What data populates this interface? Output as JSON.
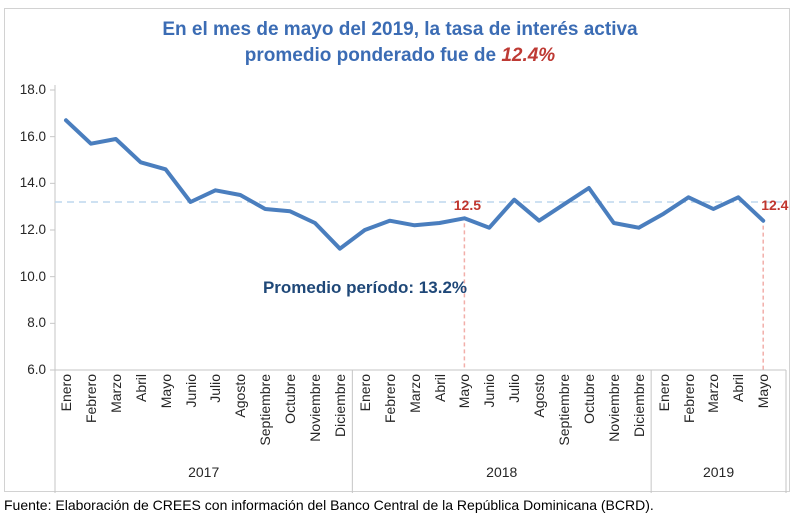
{
  "title": {
    "line1": "En el mes de mayo del 2019, la tasa de interés activa",
    "line2_prefix": "promedio ponderado fue de ",
    "line2_highlight": "12.4%"
  },
  "chart_data": {
    "type": "line",
    "series": [
      {
        "name": "Tasa de interés activa promedio ponderado (%)",
        "values": [
          16.7,
          15.7,
          15.9,
          14.9,
          14.6,
          13.2,
          13.7,
          13.5,
          12.9,
          12.8,
          12.3,
          11.2,
          12.0,
          12.4,
          12.2,
          12.3,
          12.5,
          12.1,
          13.3,
          12.4,
          13.1,
          13.8,
          12.3,
          12.1,
          12.7,
          13.4,
          12.9,
          13.4,
          12.4
        ]
      }
    ],
    "categories": [
      "Enero",
      "Febrero",
      "Marzo",
      "Abril",
      "Mayo",
      "Junio",
      "Julio",
      "Agosto",
      "Septiembre",
      "Octubre",
      "Noviembre",
      "Diciembre",
      "Enero",
      "Febrero",
      "Marzo",
      "Abril",
      "Mayo",
      "Junio",
      "Julio",
      "Agosto",
      "Septiembre",
      "Octubre",
      "Noviembre",
      "Diciembre",
      "Enero",
      "Febrero",
      "Marzo",
      "Abril",
      "Mayo"
    ],
    "category_groups": [
      {
        "label": "2017",
        "count": 12
      },
      {
        "label": "2018",
        "count": 12
      },
      {
        "label": "2019",
        "count": 5
      }
    ],
    "ylim": [
      6.0,
      18.0
    ],
    "yticks": [
      "18.0",
      "16.0",
      "14.0",
      "12.0",
      "10.0",
      "8.0",
      "6.0"
    ],
    "grid": "off",
    "legend": "none",
    "average_line": {
      "value": 13.2,
      "label": "Promedio período: 13.2%"
    },
    "annotations": [
      {
        "category_index": 16,
        "value": 12.5,
        "label": "12.5",
        "side": "left"
      },
      {
        "category_index": 28,
        "value": 12.4,
        "label": "12.4",
        "side": "right"
      }
    ]
  },
  "colors": {
    "title_blue": "#3b6cb4",
    "highlight_red": "#be3a34",
    "series_line_blue": "#4a7ebe",
    "average_dash_blue": "#bdd7ee",
    "annotation_red": "#c0362f",
    "annotation_dash_pink": "#f2aea9",
    "axis_gray": "#c6c6c6",
    "text_dark": "#262626"
  },
  "footer": "Fuente: Elaboración de CREES con información del Banco Central de la República Dominicana (BCRD)."
}
